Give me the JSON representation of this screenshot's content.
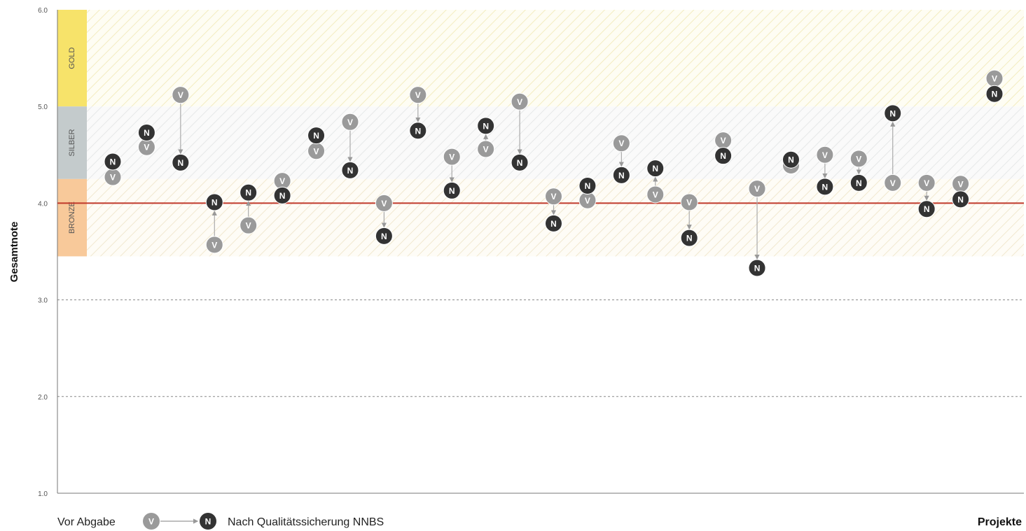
{
  "chart_data": {
    "type": "scatter",
    "ylabel": "Gesamtnote",
    "xlabel": "Projekte",
    "ylim": [
      1.0,
      6.0
    ],
    "yticks": [
      "1.0",
      "2.0",
      "3.0",
      "4.0",
      "5.0",
      "6.0"
    ],
    "threshold": 4.0,
    "grid": "dashed at 2.0 and 3.0",
    "bands": [
      {
        "label": "GOLD",
        "from": 5.0,
        "to": 6.0,
        "color": "#f7e36a"
      },
      {
        "label": "SILBER",
        "from": 4.25,
        "to": 5.0,
        "color": "#c4cbcc"
      },
      {
        "label": "BRONZE",
        "from": 3.45,
        "to": 4.25,
        "color": "#f8c99a"
      }
    ],
    "markers": {
      "before": "V",
      "after": "N",
      "before_color": "#9a9a9a",
      "after_color": "#333333"
    },
    "legend": {
      "before_label": "Vor Abgabe",
      "after_label": "Nach Qualitätssicherung NNBS",
      "position": "bottom-left"
    },
    "series": [
      {
        "name": "Vor Abgabe",
        "values": [
          4.27,
          4.58,
          5.12,
          3.57,
          3.77,
          4.23,
          4.54,
          4.84,
          4.0,
          5.12,
          4.48,
          4.56,
          5.05,
          4.07,
          4.03,
          4.62,
          4.09,
          4.01,
          4.65,
          4.15,
          4.39,
          4.5,
          4.46,
          4.21,
          4.21,
          4.2,
          5.29
        ]
      },
      {
        "name": "Nach Qualitätssicherung NNBS",
        "values": [
          4.43,
          4.73,
          4.42,
          4.01,
          4.11,
          4.08,
          4.7,
          4.34,
          3.66,
          4.75,
          4.13,
          4.8,
          4.42,
          3.79,
          4.18,
          4.29,
          4.36,
          3.64,
          4.49,
          3.33,
          4.45,
          4.17,
          4.21,
          4.93,
          3.94,
          4.04,
          5.13
        ]
      }
    ]
  }
}
